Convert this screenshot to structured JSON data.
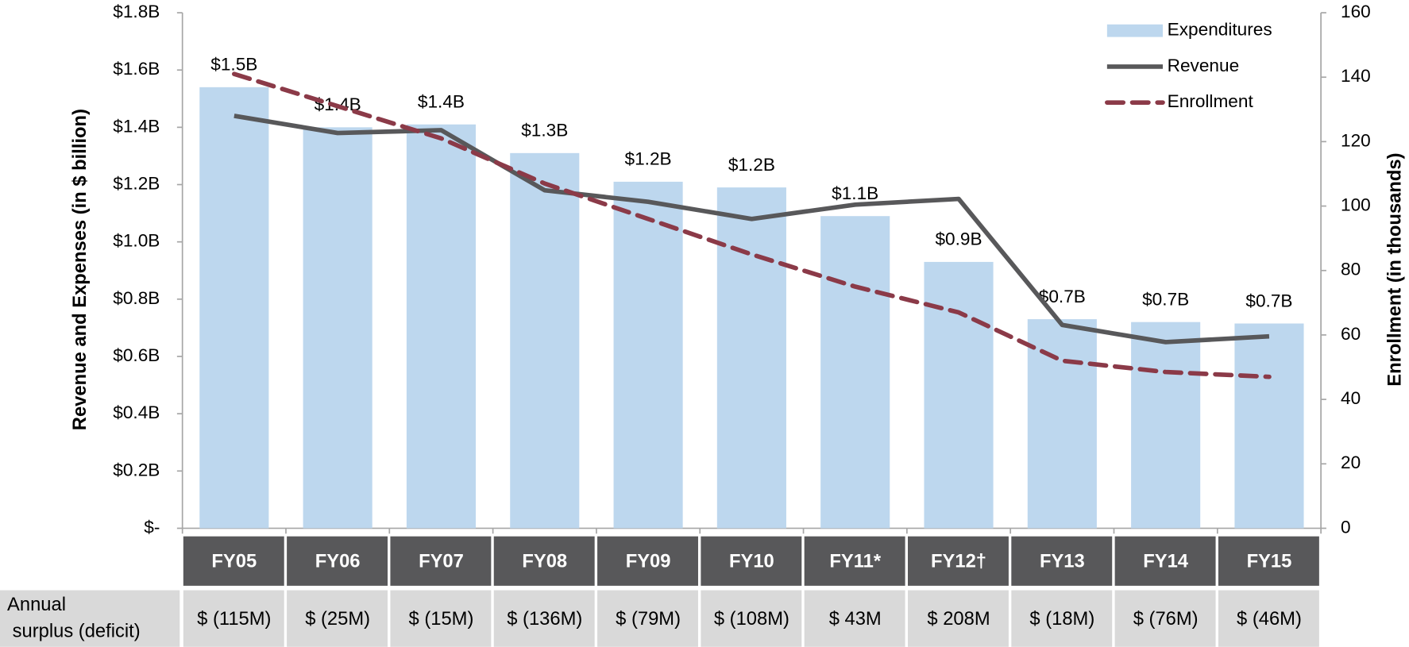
{
  "chart_data": {
    "type": "bar-line",
    "y_axis_label": "Revenue and Expenses (in $ billion)",
    "y2_axis_label": "Enrollment (in thousands)",
    "categories": [
      "FY05",
      "FY06",
      "FY07",
      "FY08",
      "FY09",
      "FY10",
      "FY11*",
      "FY12†",
      "FY13",
      "FY14",
      "FY15"
    ],
    "series": [
      {
        "name": "Expenditures",
        "type": "bar",
        "color": "#bdd7ee",
        "values": [
          1.54,
          1.4,
          1.41,
          1.31,
          1.21,
          1.19,
          1.09,
          0.93,
          0.73,
          0.72,
          0.715
        ],
        "value_labels": [
          "$1.5B",
          "$1.4B",
          "$1.4B",
          "$1.3B",
          "$1.2B",
          "$1.2B",
          "$1.1B",
          "$0.9B",
          "$0.7B",
          "$0.7B",
          "$0.7B"
        ]
      },
      {
        "name": "Revenue",
        "type": "line",
        "color": "#58585a",
        "values": [
          1.44,
          1.38,
          1.39,
          1.18,
          1.14,
          1.08,
          1.13,
          1.15,
          0.71,
          0.65,
          0.67
        ]
      },
      {
        "name": "Enrollment",
        "type": "line",
        "dashed": true,
        "axis": "y2",
        "color": "#8b3a48",
        "values": [
          141,
          131,
          121,
          107,
          96,
          85,
          75,
          67,
          52,
          48.5,
          47
        ]
      }
    ],
    "ylim": [
      0,
      1.8
    ],
    "yticks": [
      {
        "value": 0,
        "label": "$-"
      },
      {
        "value": 0.2,
        "label": "$0.2B"
      },
      {
        "value": 0.4,
        "label": "$0.4B"
      },
      {
        "value": 0.6,
        "label": "$0.6B"
      },
      {
        "value": 0.8,
        "label": "$0.8B"
      },
      {
        "value": 1.0,
        "label": "$1.0B"
      },
      {
        "value": 1.2,
        "label": "$1.2B"
      },
      {
        "value": 1.4,
        "label": "$1.4B"
      },
      {
        "value": 1.6,
        "label": "$1.6B"
      },
      {
        "value": 1.8,
        "label": "$1.8B"
      }
    ],
    "y2lim": [
      0,
      160
    ],
    "y2ticks": [
      0,
      20,
      40,
      60,
      80,
      100,
      120,
      140,
      160
    ],
    "legend": "top-right",
    "table": {
      "row_label": "Annual surplus (deficit)",
      "cells": [
        "$ (115M)",
        "$ (25M)",
        "$ (15M)",
        "$ (136M)",
        "$ (79M)",
        "$ (108M)",
        "$ 43M",
        "$ 208M",
        "$ (18M)",
        "$ (76M)",
        "$ (46M)"
      ]
    }
  }
}
